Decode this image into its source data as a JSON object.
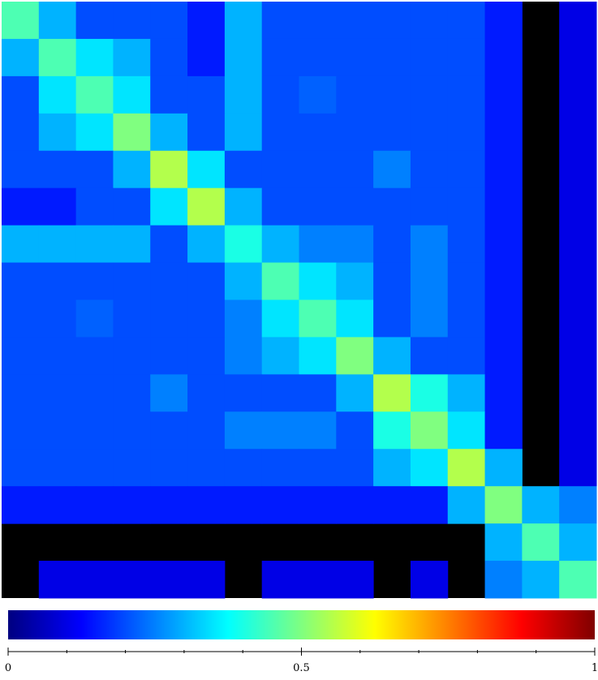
{
  "chart_data": {
    "type": "heatmap",
    "colormap": "jet",
    "z": [
      [
        0.45,
        0.3,
        0.2,
        0.2,
        0.2,
        0.15,
        0.3,
        0.2,
        0.2,
        0.2,
        0.2,
        0.2,
        0.2,
        0.15,
        null,
        0.1
      ],
      [
        0.3,
        0.45,
        0.35,
        0.3,
        0.2,
        0.15,
        0.3,
        0.2,
        0.2,
        0.2,
        0.2,
        0.2,
        0.2,
        0.15,
        null,
        0.1
      ],
      [
        0.2,
        0.35,
        0.45,
        0.35,
        0.2,
        0.2,
        0.3,
        0.2,
        0.22,
        0.2,
        0.2,
        0.2,
        0.2,
        0.15,
        null,
        0.1
      ],
      [
        0.2,
        0.3,
        0.35,
        0.5,
        0.3,
        0.2,
        0.3,
        0.2,
        0.2,
        0.2,
        0.2,
        0.2,
        0.2,
        0.15,
        null,
        0.1
      ],
      [
        0.2,
        0.2,
        0.2,
        0.3,
        0.55,
        0.35,
        0.2,
        0.2,
        0.2,
        0.2,
        0.25,
        0.2,
        0.2,
        0.15,
        null,
        0.1
      ],
      [
        0.15,
        0.15,
        0.2,
        0.2,
        0.35,
        0.55,
        0.3,
        0.2,
        0.2,
        0.2,
        0.2,
        0.2,
        0.2,
        0.15,
        null,
        0.1
      ],
      [
        0.3,
        0.3,
        0.3,
        0.3,
        0.2,
        0.3,
        0.4,
        0.3,
        0.25,
        0.25,
        0.2,
        0.25,
        0.2,
        0.15,
        null,
        0.1
      ],
      [
        0.2,
        0.2,
        0.2,
        0.2,
        0.2,
        0.2,
        0.3,
        0.45,
        0.35,
        0.3,
        0.2,
        0.25,
        0.2,
        0.15,
        null,
        0.1
      ],
      [
        0.2,
        0.2,
        0.22,
        0.2,
        0.2,
        0.2,
        0.25,
        0.35,
        0.45,
        0.35,
        0.2,
        0.25,
        0.2,
        0.15,
        null,
        0.1
      ],
      [
        0.2,
        0.2,
        0.2,
        0.2,
        0.2,
        0.2,
        0.25,
        0.3,
        0.35,
        0.5,
        0.3,
        0.2,
        0.2,
        0.15,
        null,
        0.1
      ],
      [
        0.2,
        0.2,
        0.2,
        0.2,
        0.25,
        0.2,
        0.2,
        0.2,
        0.2,
        0.3,
        0.55,
        0.4,
        0.3,
        0.15,
        null,
        0.1
      ],
      [
        0.2,
        0.2,
        0.2,
        0.2,
        0.2,
        0.2,
        0.25,
        0.25,
        0.25,
        0.2,
        0.4,
        0.5,
        0.35,
        0.15,
        null,
        0.1
      ],
      [
        0.2,
        0.2,
        0.2,
        0.2,
        0.2,
        0.2,
        0.2,
        0.2,
        0.2,
        0.2,
        0.3,
        0.35,
        0.55,
        0.3,
        null,
        0.1
      ],
      [
        0.15,
        0.15,
        0.15,
        0.15,
        0.15,
        0.15,
        0.15,
        0.15,
        0.15,
        0.15,
        0.15,
        0.15,
        0.3,
        0.5,
        0.3,
        0.25
      ],
      [
        null,
        null,
        null,
        null,
        null,
        null,
        null,
        null,
        null,
        null,
        null,
        null,
        null,
        0.3,
        0.45,
        0.3
      ],
      [
        null,
        0.1,
        0.1,
        0.1,
        0.1,
        0.1,
        null,
        0.1,
        0.1,
        0.1,
        null,
        0.1,
        null,
        0.25,
        0.3,
        0.45
      ]
    ],
    "clim": [
      0,
      1
    ],
    "cticks": [
      0,
      0.5,
      1
    ],
    "cminor_ticks": [
      0.1,
      0.2,
      0.3,
      0.4,
      0.6,
      0.7,
      0.8,
      0.9
    ]
  }
}
